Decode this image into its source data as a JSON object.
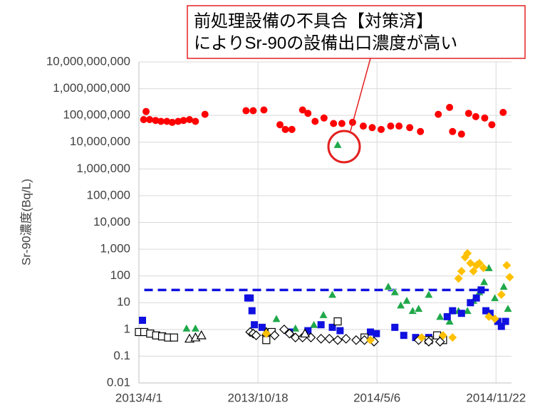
{
  "chart_data": {
    "type": "scatter",
    "ylabel": "Sr-90濃度(Bq/L)",
    "log_y": true,
    "grid": true,
    "annotation": {
      "lines": [
        "前処理設備の不具合【対策済】",
        "によりSr-90の設備出口濃度が高い"
      ],
      "color": "#e32020"
    },
    "xlim": [
      "2013-04-01",
      "2014-12-18"
    ],
    "xticks": [
      {
        "value": "2013-04-01",
        "label": "2013/4/1"
      },
      {
        "value": "2013-10-18",
        "label": "2013/10/18"
      },
      {
        "value": "2014-05-06",
        "label": "2014/5/6"
      },
      {
        "value": "2014-11-22",
        "label": "2014/11/22"
      }
    ],
    "ylim": [
      0.01,
      10000000000
    ],
    "yticks": [
      0.01,
      0.1,
      1,
      10,
      100,
      {
        "value": 1000,
        "label": "1,000"
      },
      {
        "value": 10000,
        "label": "10,000"
      },
      {
        "value": 100000,
        "label": "100,000"
      },
      {
        "value": 1000000,
        "label": "1,000,000"
      },
      {
        "value": 10000000,
        "label": "10,000,000"
      },
      {
        "value": 100000000,
        "label": "100,000,000"
      },
      {
        "value": 1000000000,
        "label": "1,000,000,000"
      },
      {
        "value": 10000000000,
        "label": "10,000,000,000"
      }
    ],
    "series": [
      {
        "marker": "dash-line",
        "color": "#1010e0",
        "x": [
          "2013-04-10",
          "2014-11-10"
        ],
        "values": [
          30,
          30
        ]
      },
      {
        "marker": "circle",
        "color": "#ff0000",
        "x": [
          "2013-04-09",
          "2013-04-13",
          "2013-04-19",
          "2013-04-29",
          "2013-05-08",
          "2013-05-18",
          "2013-05-27",
          "2013-06-06",
          "2013-06-15",
          "2013-06-25",
          "2013-07-05",
          "2013-07-21",
          "2013-09-28",
          "2013-10-10",
          "2013-10-28",
          "2013-11-24",
          "2013-12-03",
          "2013-12-14",
          "2014-01-01",
          "2014-01-10",
          "2014-01-22",
          "2014-02-06",
          "2014-02-22",
          "2014-03-08",
          "2014-03-26",
          "2014-04-13",
          "2014-04-28",
          "2014-05-13",
          "2014-05-29",
          "2014-06-12",
          "2014-06-30",
          "2014-07-18",
          "2014-08-17",
          "2014-09-05",
          "2014-09-10",
          "2014-09-25",
          "2014-10-07",
          "2014-10-19",
          "2014-11-03",
          "2014-11-15",
          "2014-12-04"
        ],
        "values": [
          70000000,
          140000000,
          70000000,
          65000000,
          60000000,
          60000000,
          55000000,
          60000000,
          65000000,
          70000000,
          60000000,
          110000000,
          150000000,
          150000000,
          160000000,
          45000000,
          30000000,
          30000000,
          160000000,
          120000000,
          60000000,
          80000000,
          50000000,
          50000000,
          55000000,
          40000000,
          35000000,
          30000000,
          40000000,
          40000000,
          35000000,
          25000000,
          110000000,
          200000000,
          25000000,
          20000000,
          120000000,
          90000000,
          80000000,
          45000000,
          130000000
        ]
      },
      {
        "marker": "triangle",
        "color": "#1fa84a",
        "x": [
          "2013-06-20",
          "2013-07-05",
          "2013-11-18",
          "2013-12-20",
          "2014-01-20",
          "2014-02-05",
          "2014-02-20",
          "2014-03-01",
          "2014-05-25",
          "2014-06-05",
          "2014-06-15",
          "2014-06-25",
          "2014-07-05",
          "2014-07-15",
          "2014-08-01",
          "2014-08-20",
          "2014-09-05",
          "2014-09-20",
          "2014-10-05",
          "2014-10-15",
          "2014-10-25",
          "2014-11-02",
          "2014-11-10",
          "2014-11-20",
          "2014-12-05",
          "2014-12-12"
        ],
        "values": [
          1.1,
          1.1,
          2.5,
          1.1,
          1.5,
          3.5,
          20,
          8000000,
          40,
          25,
          8,
          12,
          5,
          6,
          20,
          3,
          2,
          5,
          5,
          12,
          25,
          60,
          200,
          15,
          40,
          6
        ]
      },
      {
        "marker": "square",
        "color": "#1010e0",
        "x": [
          "2013-04-07",
          "2013-10-01",
          "2013-10-05",
          "2013-10-08",
          "2013-10-12",
          "2013-10-25",
          "2013-12-10",
          "2014-01-10",
          "2014-02-01",
          "2014-02-20",
          "2014-03-05",
          "2014-04-25",
          "2014-05-05",
          "2014-06-05",
          "2014-06-20",
          "2014-07-10",
          "2014-08-01",
          "2014-09-01",
          "2014-09-10",
          "2014-09-25",
          "2014-10-10",
          "2014-10-20",
          "2014-10-28",
          "2014-11-05",
          "2014-11-12",
          "2014-11-25",
          "2014-12-01",
          "2014-12-08"
        ],
        "values": [
          2.2,
          15,
          15,
          5,
          1.5,
          1.2,
          0.8,
          0.9,
          1.5,
          1.2,
          0.9,
          0.8,
          0.7,
          1.2,
          0.6,
          0.5,
          0.5,
          3,
          5,
          4,
          10,
          15,
          30,
          5,
          4,
          2,
          1.3,
          2
        ]
      },
      {
        "marker": "open-square",
        "color": "#000000",
        "x": [
          "2013-04-01",
          "2013-04-10",
          "2013-04-20",
          "2013-04-30",
          "2013-05-10",
          "2013-05-20",
          "2013-05-30",
          "2013-11-01",
          "2013-11-10",
          "2014-03-01",
          "2014-04-15",
          "2014-08-01",
          "2014-08-15",
          "2014-08-25"
        ],
        "values": [
          0.8,
          0.8,
          0.7,
          0.6,
          0.55,
          0.5,
          0.5,
          0.4,
          0.8,
          2,
          0.5,
          0.4,
          0.6,
          0.4
        ]
      },
      {
        "marker": "open-diamond",
        "color": "#000000",
        "x": [
          "2013-10-05",
          "2013-10-10",
          "2013-10-15",
          "2013-11-15",
          "2013-12-01",
          "2013-12-10",
          "2013-12-20",
          "2014-01-01",
          "2014-01-15",
          "2014-02-01",
          "2014-02-15",
          "2014-03-01",
          "2014-03-15",
          "2014-04-01",
          "2014-04-15",
          "2014-05-01",
          "2014-07-15",
          "2014-08-01",
          "2014-08-20"
        ],
        "values": [
          0.8,
          0.7,
          0.6,
          0.6,
          1,
          0.7,
          0.5,
          0.5,
          0.5,
          0.45,
          0.45,
          0.4,
          0.45,
          0.4,
          0.4,
          0.35,
          0.4,
          0.35,
          0.35
        ]
      },
      {
        "marker": "open-triangle",
        "color": "#000000",
        "x": [
          "2013-06-25",
          "2013-07-05",
          "2013-07-15",
          "2013-11-01",
          "2014-01-05"
        ],
        "values": [
          0.45,
          0.5,
          0.6,
          0.8,
          0.7
        ]
      },
      {
        "marker": "diamond",
        "color": "#ffc000",
        "x": [
          "2013-11-01",
          "2014-04-25",
          "2014-07-20",
          "2014-08-25",
          "2014-09-10",
          "2014-09-20",
          "2014-09-25",
          "2014-10-01",
          "2014-10-05",
          "2014-10-10",
          "2014-10-15",
          "2014-10-20",
          "2014-10-25",
          "2014-11-01",
          "2014-11-10",
          "2014-11-20",
          "2014-12-01",
          "2014-12-10",
          "2014-12-15"
        ],
        "values": [
          0.7,
          0.4,
          0.5,
          0.6,
          0.5,
          80,
          150,
          500,
          700,
          300,
          150,
          250,
          300,
          200,
          3,
          2.5,
          20,
          250,
          90
        ]
      }
    ]
  }
}
